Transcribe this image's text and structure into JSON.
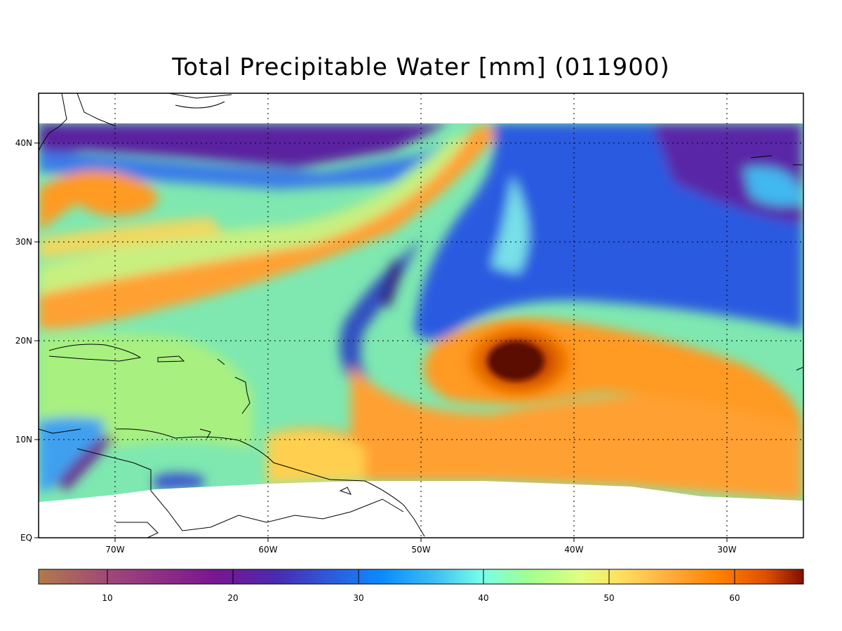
{
  "title": "Total Precipitable Water [mm]  (011900)",
  "map": {
    "lon_labels": [
      "70W",
      "60W",
      "50W",
      "40W",
      "30W"
    ],
    "lat_labels": [
      "40N",
      "30N",
      "20N",
      "10N",
      "EQ"
    ],
    "lon_range": [
      -75,
      -25
    ],
    "lat_range": [
      0,
      45
    ],
    "grid": "dotted"
  },
  "colorbar": {
    "ticks": [
      "10",
      "20",
      "30",
      "40",
      "50",
      "60"
    ],
    "range": [
      5,
      66
    ],
    "colors": [
      "#b07a4a",
      "#a04878",
      "#7a1690",
      "#4a2ab0",
      "#2a60e0",
      "#0a8cff",
      "#40c0f0",
      "#78ffe8",
      "#a0ff90",
      "#e0ff80",
      "#ffe060",
      "#ffb040",
      "#ff8000",
      "#e05000",
      "#801000"
    ]
  }
}
